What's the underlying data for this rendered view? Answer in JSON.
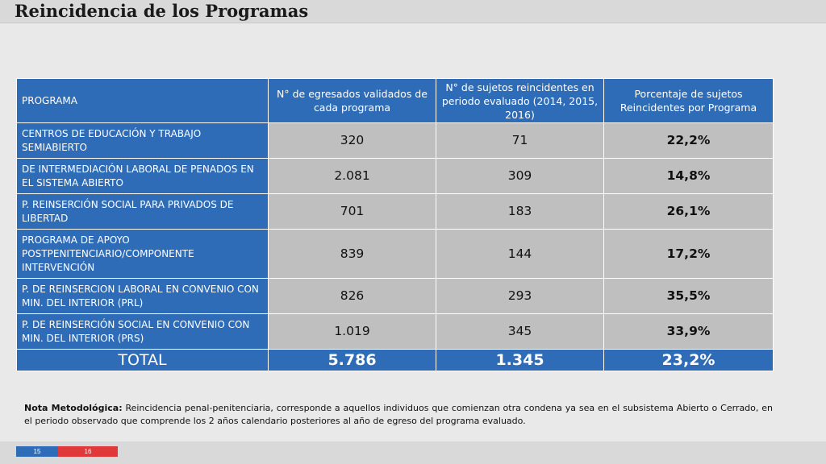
{
  "title": "Reincidencia de los Programas",
  "table": {
    "headers": [
      "PROGRAMA",
      "N° de egresados validados de cada programa",
      "N° de sujetos reincidentes en periodo evaluado (2014, 2015, 2016)",
      "Porcentaje de sujetos Reincidentes por Programa"
    ],
    "rows": [
      {
        "programa": "CENTROS DE EDUCACIÓN Y TRABAJO SEMIABIERTO",
        "egresados": "320",
        "reincidentes": "71",
        "porcentaje": "22,2%"
      },
      {
        "programa": "DE INTERMEDIACIÓN LABORAL DE PENADOS EN EL SISTEMA ABIERTO",
        "egresados": "2.081",
        "reincidentes": "309",
        "porcentaje": "14,8%"
      },
      {
        "programa": "P. REINSERCIÓN SOCIAL PARA PRIVADOS DE LIBERTAD",
        "egresados": "701",
        "reincidentes": "183",
        "porcentaje": "26,1%"
      },
      {
        "programa": "PROGRAMA DE APOYO POSTPENITENCIARIO/COMPONENTE INTERVENCIÓN",
        "egresados": "839",
        "reincidentes": "144",
        "porcentaje": "17,2%"
      },
      {
        "programa": "P. DE REINSERCION LABORAL EN CONVENIO CON MIN. DEL INTERIOR (PRL)",
        "egresados": "826",
        "reincidentes": "293",
        "porcentaje": "35,5%"
      },
      {
        "programa": "P. DE REINSERCIÓN SOCIAL EN CONVENIO CON MIN. DEL INTERIOR (PRS)",
        "egresados": "1.019",
        "reincidentes": "345",
        "porcentaje": "33,9%"
      }
    ],
    "total": {
      "label": "TOTAL",
      "egresados": "5.786",
      "reincidentes": "1.345",
      "porcentaje": "23,2%"
    }
  },
  "note": {
    "label": "Nota Metodológica:",
    "text": " Reincidencia penal-penitenciaria, corresponde a aquellos individuos que comienzan otra condena ya sea en el subsistema Abierto o Cerrado, en el periodo observado que comprende los 2 años calendario posteriores al año de egreso del programa evaluado."
  },
  "footer": {
    "page_a": "15",
    "page_b": "16"
  },
  "colors": {
    "header_blue": "#2f6cb8",
    "cell_gray": "#bfbfbf",
    "background": "#e9e9e9",
    "accent_red": "#e0393b"
  }
}
